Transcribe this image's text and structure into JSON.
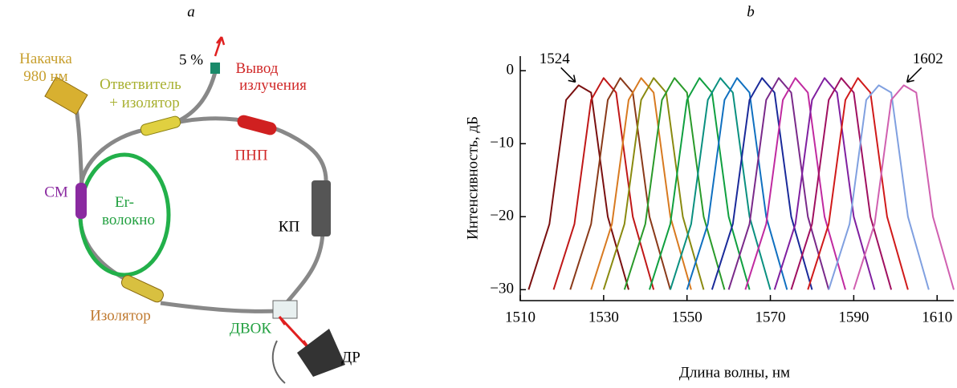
{
  "panel_a": {
    "label": "a",
    "labels": {
      "pump": [
        "Накачка",
        "980 нм"
      ],
      "coupler": [
        "Ответвитель",
        "+ изолятор"
      ],
      "tap": "5 %",
      "output": [
        "Вывод",
        "излучения"
      ],
      "pnp": "ПНП",
      "wdm": "СМ",
      "er_fiber": [
        "Er-",
        "волокно"
      ],
      "pc": "КП",
      "isolator": "Изолятор",
      "fbg": "ДВОК",
      "dr": "ДР"
    }
  },
  "chart_data": {
    "type": "line",
    "panel_label": "b",
    "xlabel": "Длина волны, нм",
    "ylabel": "Интенсивность, дБ",
    "xlim": [
      1510,
      1614
    ],
    "xticks": [
      1510,
      1530,
      1550,
      1570,
      1590,
      1610
    ],
    "ylim": [
      -31.5,
      2
    ],
    "yticks": [
      {
        "value": -30,
        "label": "−30"
      },
      {
        "value": -20,
        "label": "−20"
      },
      {
        "value": -10,
        "label": "−10"
      },
      0
    ],
    "annotations": [
      {
        "text": "1524",
        "x": 1524,
        "y": -2
      },
      {
        "text": "1602",
        "x": 1602,
        "y": -2
      }
    ],
    "series": [
      {
        "color": "#7a1010",
        "x": [
          1512,
          1517,
          1521,
          1524,
          1527,
          1531,
          1536
        ],
        "values": [
          -30,
          -21,
          -4,
          -2,
          -3,
          -20,
          -30
        ]
      },
      {
        "color": "#c01818",
        "x": [
          1518,
          1523,
          1527,
          1530,
          1533,
          1537,
          1542
        ],
        "values": [
          -30,
          -21,
          -4,
          -1,
          -3,
          -20,
          -30
        ]
      },
      {
        "color": "#8a3a1a",
        "x": [
          1522,
          1527,
          1531,
          1534,
          1537,
          1541,
          1546
        ],
        "values": [
          -30,
          -21,
          -4,
          -1,
          -3,
          -20,
          -30
        ]
      },
      {
        "color": "#d87a20",
        "x": [
          1527,
          1532,
          1536,
          1539,
          1542,
          1546,
          1551
        ],
        "values": [
          -30,
          -21,
          -4,
          -1,
          -3,
          -20,
          -30
        ]
      },
      {
        "color": "#8a8a10",
        "x": [
          1530,
          1535,
          1539,
          1542,
          1545,
          1549,
          1554
        ],
        "values": [
          -30,
          -21,
          -4,
          -1,
          -3,
          -20,
          -30
        ]
      },
      {
        "color": "#2a9a2a",
        "x": [
          1535,
          1540,
          1544,
          1547,
          1550,
          1554,
          1559
        ],
        "values": [
          -30,
          -21,
          -4,
          -1,
          -3,
          -20,
          -30
        ]
      },
      {
        "color": "#10a040",
        "x": [
          1541,
          1546,
          1550,
          1553,
          1556,
          1560,
          1565
        ],
        "values": [
          -30,
          -21,
          -4,
          -1,
          -3,
          -20,
          -30
        ]
      },
      {
        "color": "#0a9080",
        "x": [
          1546,
          1551,
          1555,
          1558,
          1561,
          1565,
          1570
        ],
        "values": [
          -30,
          -21,
          -4,
          -1,
          -3,
          -20,
          -30
        ]
      },
      {
        "color": "#1070c0",
        "x": [
          1550,
          1555,
          1559,
          1562,
          1565,
          1569,
          1574
        ],
        "values": [
          -30,
          -21,
          -4,
          -1,
          -3,
          -20,
          -30
        ]
      },
      {
        "color": "#1a2a9a",
        "x": [
          1556,
          1561,
          1565,
          1568,
          1571,
          1575,
          1580
        ],
        "values": [
          -30,
          -21,
          -4,
          -1,
          -3,
          -20,
          -30
        ]
      },
      {
        "color": "#7a2a8a",
        "x": [
          1560,
          1565,
          1569,
          1572,
          1575,
          1579,
          1584
        ],
        "values": [
          -30,
          -21,
          -4,
          -1,
          -3,
          -20,
          -30
        ]
      },
      {
        "color": "#c02aa0",
        "x": [
          1564,
          1569,
          1573,
          1576,
          1579,
          1583,
          1588
        ],
        "values": [
          -30,
          -21,
          -4,
          -1,
          -3,
          -20,
          -30
        ]
      },
      {
        "color": "#8020a0",
        "x": [
          1571,
          1576,
          1580,
          1583,
          1586,
          1590,
          1595
        ],
        "values": [
          -30,
          -21,
          -4,
          -1,
          -3,
          -20,
          -30
        ]
      },
      {
        "color": "#a01060",
        "x": [
          1575,
          1580,
          1584,
          1587,
          1590,
          1594,
          1599
        ],
        "values": [
          -30,
          -21,
          -4,
          -1,
          -3,
          -20,
          -30
        ]
      },
      {
        "color": "#d01a1a",
        "x": [
          1579,
          1584,
          1588,
          1591,
          1594,
          1598,
          1603
        ],
        "values": [
          -30,
          -21,
          -4,
          -1,
          -3,
          -20,
          -30
        ]
      },
      {
        "color": "#80a0e0",
        "x": [
          1584,
          1589,
          1593,
          1596,
          1599,
          1603,
          1608
        ],
        "values": [
          -30,
          -21,
          -4,
          -2,
          -3,
          -20,
          -30
        ]
      },
      {
        "color": "#d060b0",
        "x": [
          1590,
          1595,
          1599,
          1602,
          1605,
          1609,
          1614
        ],
        "values": [
          -30,
          -21,
          -4,
          -2,
          -3,
          -20,
          -30
        ]
      }
    ]
  }
}
